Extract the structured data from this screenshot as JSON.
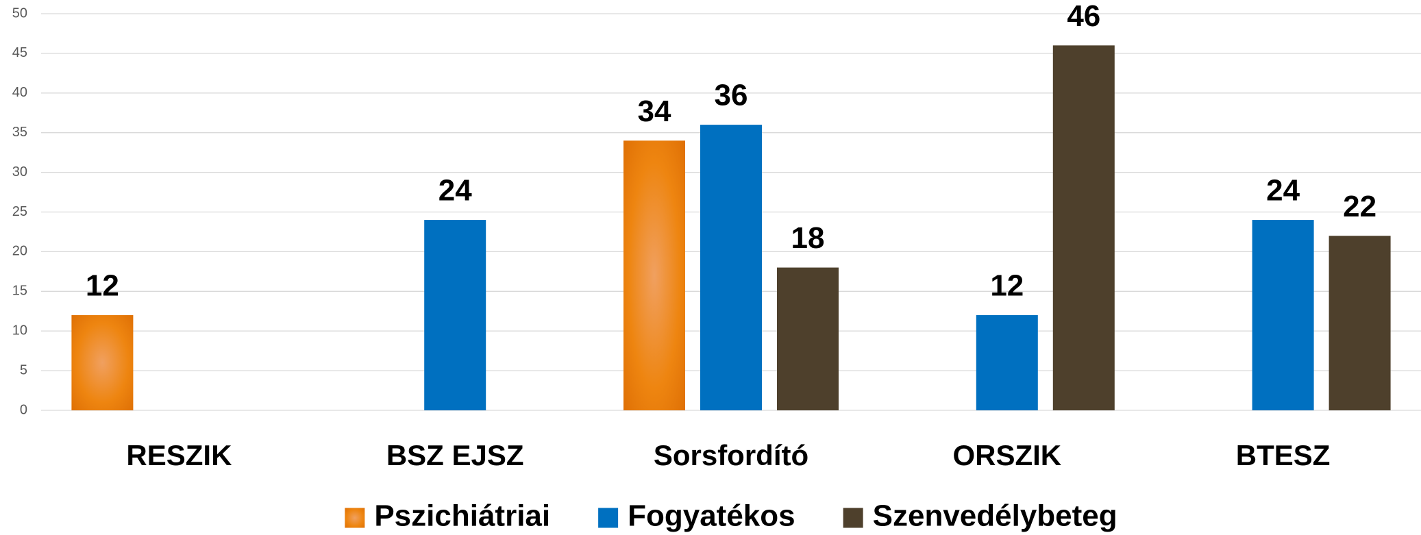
{
  "chart_data": {
    "type": "bar",
    "categories": [
      "RESZIK",
      "BSZ EJSZ",
      "Sorsfordító",
      "ORSZIK",
      "BTESZ"
    ],
    "series": [
      {
        "name": "Pszichiátriai",
        "color": "#e97e0b",
        "values": [
          12,
          null,
          34,
          null,
          null
        ]
      },
      {
        "name": "Fogyatékos",
        "color": "#0070c0",
        "values": [
          null,
          24,
          36,
          12,
          24
        ]
      },
      {
        "name": "Szenvedélybeteg",
        "color": "#4e402c",
        "values": [
          null,
          null,
          18,
          46,
          22
        ]
      }
    ],
    "ylim": [
      0,
      50
    ],
    "yticks": [
      0,
      5,
      10,
      15,
      20,
      25,
      30,
      35,
      40,
      45,
      50
    ],
    "grid": true,
    "legend": "bottom"
  }
}
